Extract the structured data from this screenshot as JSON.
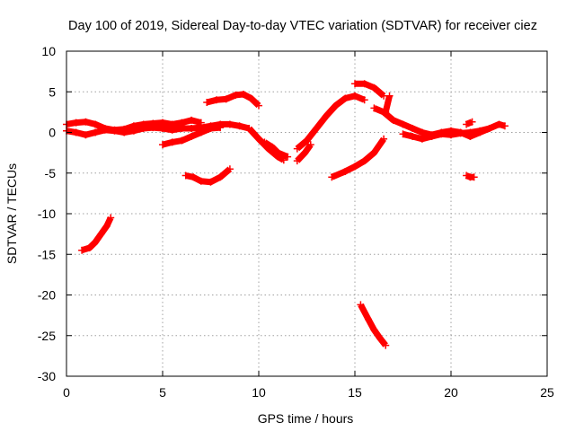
{
  "chart_data": {
    "type": "scatter",
    "title": "Day 100 of 2019, Sidereal Day-to-day VTEC variation (SDTVAR) for receiver ciez",
    "xlabel": "GPS time / hours",
    "ylabel": "SDTVAR / TECUs",
    "xlim": [
      0,
      25
    ],
    "ylim": [
      -30,
      10
    ],
    "xticks": [
      "0",
      "5",
      "10",
      "15",
      "20",
      "25"
    ],
    "yticks": [
      "10",
      "5",
      "0",
      "-5",
      "-10",
      "-15",
      "-20",
      "-25",
      "-30"
    ],
    "grid": true,
    "marker": "plus",
    "color": "#ff0000",
    "series": [
      {
        "name": "track-1",
        "x": [
          0.0,
          0.5,
          1.0,
          1.5,
          2.0,
          2.5,
          3.0,
          3.5,
          4.0,
          4.5,
          5.0,
          5.5,
          6.0,
          6.5,
          7.0
        ],
        "y": [
          1.0,
          1.2,
          1.3,
          1.0,
          0.5,
          0.3,
          0.4,
          0.8,
          1.0,
          1.1,
          1.2,
          1.0,
          1.2,
          1.5,
          1.2
        ]
      },
      {
        "name": "track-2",
        "x": [
          0.0,
          0.5,
          1.0,
          1.5,
          2.0,
          2.5,
          3.0,
          3.5,
          4.0,
          4.5,
          5.0,
          5.5,
          6.0,
          6.5,
          7.0,
          7.5,
          8.0,
          8.5,
          9.0,
          9.5
        ],
        "y": [
          0.2,
          0.0,
          -0.3,
          0.0,
          0.3,
          0.2,
          0.0,
          0.2,
          0.5,
          0.6,
          0.5,
          0.3,
          0.5,
          0.5,
          0.6,
          0.8,
          1.0,
          1.0,
          0.8,
          0.5
        ]
      },
      {
        "name": "track-3",
        "x": [
          5.0,
          5.5,
          6.0,
          6.5,
          7.0,
          7.5,
          8.0
        ],
        "y": [
          -1.5,
          -1.2,
          -1.0,
          -0.5,
          0.0,
          0.5,
          0.6
        ]
      },
      {
        "name": "track-4",
        "x": [
          6.2,
          6.6,
          7.0,
          7.5,
          8.0,
          8.5
        ],
        "y": [
          -5.3,
          -5.5,
          -6.0,
          -6.1,
          -5.5,
          -4.5
        ]
      },
      {
        "name": "track-5",
        "x": [
          7.3,
          7.8,
          8.3,
          8.8,
          9.2,
          9.6,
          10.0
        ],
        "y": [
          3.7,
          4.0,
          4.1,
          4.6,
          4.7,
          4.2,
          3.3
        ]
      },
      {
        "name": "track-6",
        "x": [
          9.5,
          10.0,
          10.5,
          11.0,
          11.3
        ],
        "y": [
          0.5,
          -0.8,
          -2.0,
          -3.0,
          -3.4
        ]
      },
      {
        "name": "track-7",
        "x": [
          10.3,
          10.7,
          11.0,
          11.5
        ],
        "y": [
          -1.2,
          -1.8,
          -2.5,
          -3.0
        ]
      },
      {
        "name": "track-8",
        "x": [
          12.0,
          12.5,
          13.0,
          13.5,
          14.0,
          14.5,
          15.0,
          15.5
        ],
        "y": [
          -2.0,
          -1.0,
          0.5,
          2.0,
          3.3,
          4.2,
          4.5,
          4.0
        ]
      },
      {
        "name": "track-9",
        "x": [
          12.0,
          12.4,
          12.7
        ],
        "y": [
          -3.5,
          -2.5,
          -1.5
        ]
      },
      {
        "name": "track-10",
        "x": [
          15.0,
          15.5,
          16.0,
          16.5
        ],
        "y": [
          6.0,
          6.0,
          5.5,
          4.5
        ]
      },
      {
        "name": "track-11",
        "x": [
          16.0,
          16.5,
          17.0,
          17.5,
          18.0,
          18.5,
          19.0,
          19.5,
          20.0,
          20.5,
          21.0,
          21.5,
          22.0,
          22.5,
          22.8
        ],
        "y": [
          3.0,
          2.5,
          1.5,
          1.0,
          0.5,
          0.0,
          -0.3,
          0.0,
          0.2,
          0.0,
          -0.5,
          0.0,
          0.5,
          1.0,
          0.8
        ]
      },
      {
        "name": "track-12",
        "x": [
          17.5,
          18.0,
          18.5,
          19.0,
          19.5,
          20.0,
          20.5,
          21.0,
          21.5,
          22.0
        ],
        "y": [
          -0.2,
          -0.5,
          -0.8,
          -0.5,
          -0.2,
          -0.3,
          -0.1,
          0.0,
          0.2,
          0.5
        ]
      },
      {
        "name": "track-13",
        "x": [
          13.8,
          14.5,
          15.0,
          15.5,
          16.0,
          16.5
        ],
        "y": [
          -5.5,
          -4.8,
          -4.2,
          -3.5,
          -2.5,
          -0.8
        ]
      },
      {
        "name": "track-14",
        "x": [
          15.3,
          15.7,
          16.0,
          16.3,
          16.6
        ],
        "y": [
          -21.2,
          -23.0,
          -24.3,
          -25.3,
          -26.2
        ]
      },
      {
        "name": "track-15",
        "x": [
          0.8,
          1.2,
          1.5,
          1.8,
          2.1,
          2.3
        ],
        "y": [
          -14.5,
          -14.2,
          -13.5,
          -12.5,
          -11.5,
          -10.5
        ]
      },
      {
        "name": "track-16",
        "x": [
          20.8,
          21.0,
          21.2
        ],
        "y": [
          -5.3,
          -5.5,
          -5.5
        ]
      },
      {
        "name": "track-17",
        "x": [
          20.8,
          21.1
        ],
        "y": [
          1.0,
          1.3
        ]
      },
      {
        "name": "track-18",
        "x": [
          16.8,
          16.6
        ],
        "y": [
          4.5,
          2.5
        ]
      }
    ]
  }
}
